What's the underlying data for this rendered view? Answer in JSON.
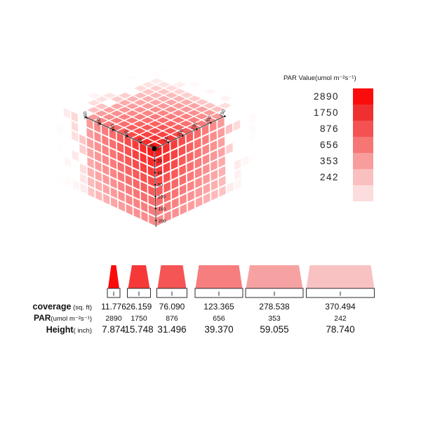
{
  "chart_data": {
    "type": "heatmap",
    "description": "3D cube heatmap of PAR light intensity above/around a lamp at the origin corner, with distance axes in the horizontal plane and height axis downward; companion coverage trapezoids and data table",
    "legend": {
      "title": "PAR Value(umol m⁻²s⁻¹)",
      "entries": [
        {
          "par": "2890",
          "color": "#fb0c0c"
        },
        {
          "par": "1750",
          "color": "#f03030"
        },
        {
          "par": "876",
          "color": "#f45252"
        },
        {
          "par": "656",
          "color": "#f67676"
        },
        {
          "par": "353",
          "color": "#f89c9c"
        },
        {
          "par": "242",
          "color": "#fabfbf"
        }
      ],
      "extra_swatch_color": "#fcdcdc"
    },
    "cube": {
      "grid_size": 9,
      "axis_left_ticks": [
        0,
        50,
        100,
        150,
        200,
        250
      ],
      "axis_right_ticks": [
        0,
        50,
        100,
        150,
        200,
        250
      ],
      "axis_vertical_ticks": [
        0,
        20,
        40,
        80,
        100,
        150,
        200
      ],
      "hot_color": "#f60c0c",
      "cold_color": "#ffffff"
    },
    "table": {
      "rows": [
        {
          "label": "coverage",
          "unit": " (sq. ft)",
          "key": "coverage"
        },
        {
          "label": "PAR",
          "unit": "(umol m⁻²s⁻¹)",
          "key": "par"
        },
        {
          "label": "Height",
          "unit": "( inch)",
          "key": "height"
        }
      ],
      "columns": [
        {
          "coverage": "11.776",
          "par": "2890",
          "height": "7.874",
          "color": "#fa0a0a"
        },
        {
          "coverage": "26.159",
          "par": "1750",
          "height": "15.748",
          "color": "#f63838"
        },
        {
          "coverage": "76.090",
          "par": "876",
          "height": "31.496",
          "color": "#f55555"
        },
        {
          "coverage": "123.365",
          "par": "656",
          "height": "39.370",
          "color": "#f67e7e"
        },
        {
          "coverage": "278.538",
          "par": "353",
          "height": "59.055",
          "color": "#f7a2a2"
        },
        {
          "coverage": "370.494",
          "par": "242",
          "height": "78.740",
          "color": "#f9c2c2"
        }
      ]
    }
  }
}
